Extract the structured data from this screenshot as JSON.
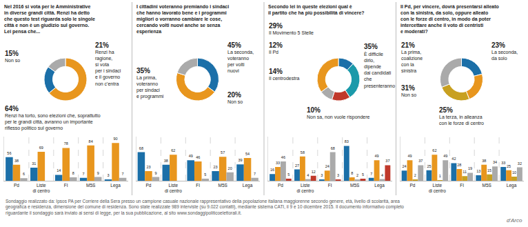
{
  "chart_data": [
    {
      "type": "pie",
      "title": "Nel 2016 si vota per le Amministrative\nin diverse grandi città. Renzi ha detto\nche questo test riguarda solo le singole\ncittà e non è un giudizio sul governo.\nLei pensa che...",
      "categories": [
        "Renzi ha torto, sono elezioni che, soprattutto\nper le grandi città, avranno un importante\nriflesso politico sul governo",
        "Renzi ha\nragione,\nsi vota\nper i sindaci\ne il governo\nnon c'entra",
        "Non so"
      ],
      "values": [
        64,
        21,
        15
      ],
      "value_labels": [
        "64%",
        "21%",
        "15%"
      ],
      "colors": [
        "#E8961E",
        "#1B6FA8",
        "#AAAAAA"
      ],
      "data_labels": true
    },
    {
      "type": "bar",
      "categories": [
        "Pd",
        "Liste\ndi centro",
        "FI",
        "M5S",
        "Lega"
      ],
      "series": [
        {
          "color": "#1B6FA8",
          "values": [
            56,
            31,
            14,
            7,
            3
          ]
        },
        {
          "color": "#E8961E",
          "values": [
            38,
            69,
            78,
            84,
            90
          ]
        },
        {
          "color": "#AAAAAA",
          "values": [
            6,
            0,
            8,
            9,
            7
          ],
          "value_labels": [
            "6",
            null,
            "8",
            "9",
            "7"
          ]
        }
      ],
      "ylim": [
        0,
        105
      ],
      "grid": false,
      "data_labels": true,
      "tick_labels": "x"
    },
    {
      "type": "pie",
      "title": "I cittadini voteranno premiando i sindaci\nche hanno lavorato bene e i programmi\nmigliori o vorranno cambiare le cose,\ncercando volti nuovi anche se senza\nesperienza",
      "categories": [
        "La prima,\nvoteranno\nper sindaci\ne programmi",
        "La seconda,\nvoteranno\nper volti\nnuovi",
        "Non so"
      ],
      "values": [
        35,
        45,
        20
      ],
      "value_labels": [
        "35%",
        "45%",
        "20%"
      ],
      "colors": [
        "#1B6FA8",
        "#E8961E",
        "#AAAAAA"
      ],
      "data_labels": true
    },
    {
      "type": "bar",
      "categories": [
        "Pd",
        "Liste\ndi centro",
        "FI",
        "M5S",
        "Lega"
      ],
      "series": [
        {
          "color": "#1B6FA8",
          "values": [
            68,
            38,
            49,
            23,
            39
          ]
        },
        {
          "color": "#E8961E",
          "values": [
            23,
            62,
            46,
            57,
            54
          ]
        },
        {
          "color": "#AAAAAA",
          "values": [
            9,
            0,
            5,
            20,
            7
          ],
          "value_labels": [
            "9",
            null,
            "5",
            "20",
            "7"
          ]
        }
      ],
      "ylim": [
        0,
        105
      ],
      "grid": false,
      "data_labels": true,
      "tick_labels": "x"
    },
    {
      "type": "pie",
      "title": "Secondo lei in queste elezioni qual è\nil partito che ha più possibilità di vincere?",
      "categories": [
        "Il Pd",
        "Il Movimento 5 Stelle",
        "Il centrodestra",
        "Non sa, non vuole rispondere",
        "È difficile\ndirlo,\ndipende\ndai candidati\nche\npresenteranno"
      ],
      "values": [
        12,
        29,
        14,
        10,
        35
      ],
      "value_labels": [
        "12%",
        "29%",
        "14%",
        "10%",
        "35%"
      ],
      "colors": [
        "#1B6FA8",
        "#1B9AAA",
        "#C0392B",
        "#AAAAAA",
        "#E8961E"
      ],
      "data_labels": true
    },
    {
      "type": "bar",
      "categories": [
        "Pd",
        "Liste\ndi centro",
        "FI",
        "M5S",
        "Lega"
      ],
      "series": [
        {
          "color": "#1B6FA8",
          "values": [
            16,
            27,
            3,
            83,
            7
          ]
        },
        {
          "color": "#E8961E",
          "values": [
            33,
            58,
            24,
            8,
            49
          ]
        },
        {
          "color": "#AAAAAA",
          "values": [
            46,
            4,
            68,
            2,
            4
          ]
        },
        {
          "color": "#C0392B",
          "values": [
            5,
            12,
            3,
            5,
            37
          ]
        }
      ],
      "ylim": [
        0,
        105
      ],
      "grid": false,
      "data_labels": true,
      "tick_labels": "x"
    },
    {
      "type": "pie",
      "title": "Il Pd, per vincere, dovrà presentarsi alleato\ncon la sinistra, da solo, oppure alleato\ncon le forze di centro, in modo da poter\nintercettare anche il voto di centristi\ne moderati?",
      "categories": [
        "La prima,\ncoalizione\ncon la\nsinistra",
        "La seconda,\nda solo",
        "La terza, in alleanza\ncon le forze di centro",
        "Non so"
      ],
      "values": [
        21,
        23,
        25,
        31
      ],
      "value_labels": [
        "21%",
        "23%",
        "25%",
        "31%"
      ],
      "colors": [
        "#1B6FA8",
        "#E8961E",
        "#C8A020",
        "#AAAAAA"
      ],
      "data_labels": true
    },
    {
      "type": "bar",
      "categories": [
        "Pd",
        "Liste\ndi centro",
        "FI",
        "M5S",
        "Lega"
      ],
      "series": [
        {
          "color": "#1B6FA8",
          "values": [
            24,
            25,
            42,
            13,
            33
          ]
        },
        {
          "color": "#E8961E",
          "values": [
            49,
            62,
            28,
            38,
            25
          ]
        },
        {
          "color": "#C8A020",
          "values": [
            2,
            1,
            11,
            15,
            10
          ]
        },
        {
          "color": "#AAAAAA",
          "values": [
            37,
            49,
            19,
            34,
            32
          ]
        }
      ],
      "ylim": [
        0,
        105
      ],
      "grid": false,
      "data_labels": true,
      "tick_labels": "x"
    }
  ],
  "annotations": [
    "Sondaggio realizzato da: Ipsos PA per Corriere della Sera presso un campione casuale nazionale rappresentativo della popolazione italiana maggiorenne secondo genere, età, livello di scolarità, area geografica e residenza, dimensione del comune di residenza. Sono state realizzate 989 interviste (su 9.022 contatti), mediante sistema CATI, il 9 e 10 dicembre 2015. Il documento informativo completo riguardante il sondaggio sarà inviato ai sensi di legge, per la sua pubblicazione, al sito www.sondaggipoliticoelettorali.it.",
    "d'Arco"
  ]
}
